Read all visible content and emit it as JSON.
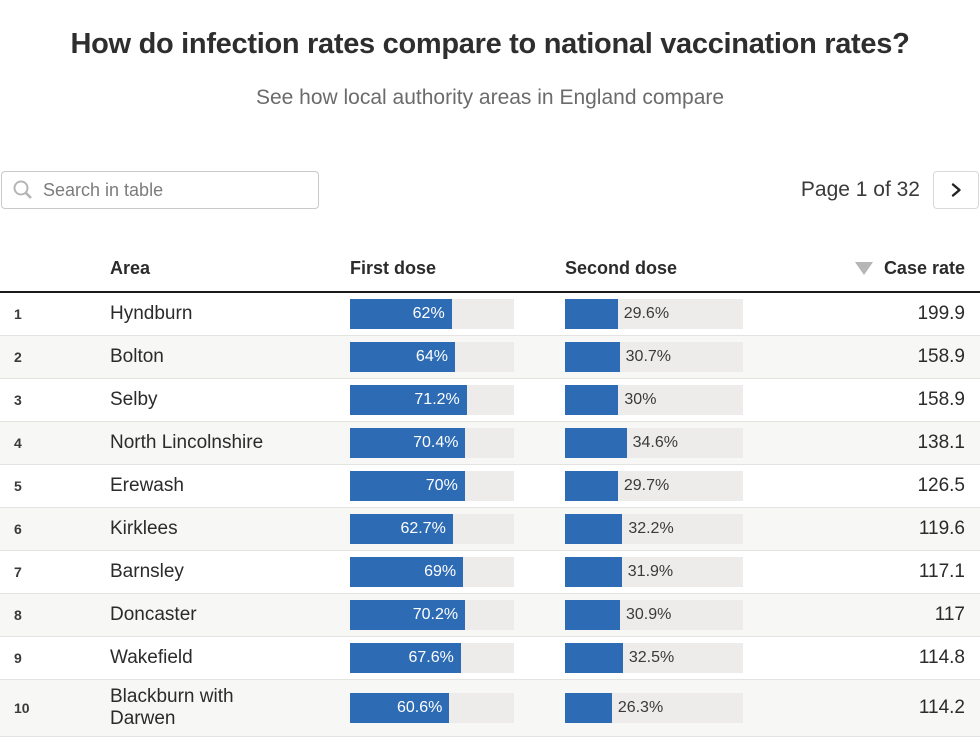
{
  "header": {
    "title": "How do infection rates compare to national vaccination rates?",
    "subtitle": "See how local authority areas in England compare"
  },
  "toolbar": {
    "search_placeholder": "Search in table",
    "page_indicator": "Page 1 of 32",
    "icons": {
      "search": "magnifier-icon",
      "next": "chevron-right-icon"
    }
  },
  "table": {
    "headers": {
      "area": "Area",
      "first_dose": "First dose",
      "second_dose": "Second dose",
      "case_rate": "Case rate"
    },
    "sort": {
      "column": "case_rate",
      "direction": "descending"
    },
    "rows": [
      {
        "rank": "1",
        "area": "Hyndburn",
        "first_dose_pct": 62,
        "first_dose_label": "62%",
        "second_dose_pct": 29.6,
        "second_dose_label": "29.6%",
        "case_rate": "199.9"
      },
      {
        "rank": "2",
        "area": "Bolton",
        "first_dose_pct": 64,
        "first_dose_label": "64%",
        "second_dose_pct": 30.7,
        "second_dose_label": "30.7%",
        "case_rate": "158.9"
      },
      {
        "rank": "3",
        "area": "Selby",
        "first_dose_pct": 71.2,
        "first_dose_label": "71.2%",
        "second_dose_pct": 30,
        "second_dose_label": "30%",
        "case_rate": "158.9"
      },
      {
        "rank": "4",
        "area": "North Lincolnshire",
        "first_dose_pct": 70.4,
        "first_dose_label": "70.4%",
        "second_dose_pct": 34.6,
        "second_dose_label": "34.6%",
        "case_rate": "138.1"
      },
      {
        "rank": "5",
        "area": "Erewash",
        "first_dose_pct": 70,
        "first_dose_label": "70%",
        "second_dose_pct": 29.7,
        "second_dose_label": "29.7%",
        "case_rate": "126.5"
      },
      {
        "rank": "6",
        "area": "Kirklees",
        "first_dose_pct": 62.7,
        "first_dose_label": "62.7%",
        "second_dose_pct": 32.2,
        "second_dose_label": "32.2%",
        "case_rate": "119.6"
      },
      {
        "rank": "7",
        "area": "Barnsley",
        "first_dose_pct": 69,
        "first_dose_label": "69%",
        "second_dose_pct": 31.9,
        "second_dose_label": "31.9%",
        "case_rate": "117.1"
      },
      {
        "rank": "8",
        "area": "Doncaster",
        "first_dose_pct": 70.2,
        "first_dose_label": "70.2%",
        "second_dose_pct": 30.9,
        "second_dose_label": "30.9%",
        "case_rate": "117"
      },
      {
        "rank": "9",
        "area": "Wakefield",
        "first_dose_pct": 67.6,
        "first_dose_label": "67.6%",
        "second_dose_pct": 32.5,
        "second_dose_label": "32.5%",
        "case_rate": "114.8"
      },
      {
        "rank": "10",
        "area": "Blackburn with Darwen",
        "first_dose_pct": 60.6,
        "first_dose_label": "60.6%",
        "second_dose_pct": 26.3,
        "second_dose_label": "26.3%",
        "case_rate": "114.2"
      }
    ]
  },
  "colors": {
    "bar_fill": "#2d6bb4",
    "bar_track": "#edecea",
    "header_border": "#1a1a1a",
    "row_alt_bg": "#f7f7f5"
  }
}
